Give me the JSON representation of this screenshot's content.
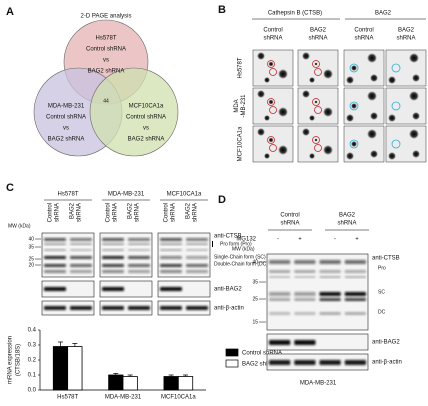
{
  "panel_a": {
    "label": "A",
    "title": "2-D PAGE analysis",
    "circles": [
      [
        "Hs578T",
        "Control shRNA",
        "vs",
        "BAG2 shRNA"
      ],
      [
        "MDA-MB-231",
        "Control shRNA",
        "vs",
        "BAG2 shRNA"
      ],
      [
        "MCF10CA1a",
        "Control shRNA",
        "vs",
        "BAG2 shRNA"
      ]
    ],
    "overlap": "44"
  },
  "panel_b": {
    "label": "B",
    "headers": [
      "Cathepsin B (CTSB)",
      "BAG2"
    ],
    "columns": [
      [
        "Control",
        "shRNA"
      ],
      [
        "BAG2",
        "shRNA"
      ],
      [
        "Control",
        "shRNA"
      ],
      [
        "BAG2",
        "shRNA"
      ]
    ],
    "rows": [
      [
        "Hs578T"
      ],
      [
        "MDA",
        "-MB-231"
      ],
      [
        "MCF10CA1a"
      ]
    ]
  },
  "panel_c": {
    "label": "C",
    "cell_lines": [
      "Hs578T",
      "MDA-MB-231",
      "MCF10CA1a"
    ],
    "lanes": [
      [
        "Control",
        "shRNA"
      ],
      [
        "BAG2",
        "shRNA"
      ]
    ],
    "mw_title": "MW (kDa)",
    "mw_ticks": [
      40,
      35,
      25,
      20
    ],
    "blot_labels": [
      "anti-CTSB",
      "Pro form (Pro)",
      "Single-Chain form (SC)",
      "Double-Chain form (DC)",
      "anti-BAG2",
      "anti-β-actin"
    ]
  },
  "chart_data": {
    "type": "bar",
    "ylabel": [
      "mRNA expression",
      "(CTSB/18S)"
    ],
    "categories": [
      "Hs578T",
      "MDA-MB-231",
      "MCF10CA1a"
    ],
    "series": [
      {
        "name": "Control shRNA",
        "color": "#000000",
        "values": [
          0.29,
          0.1,
          0.09
        ],
        "errors": [
          0.03,
          0.01,
          0.01
        ]
      },
      {
        "name": "BAG2 shRNA",
        "color": "#ffffff",
        "values": [
          0.29,
          0.09,
          0.09
        ],
        "errors": [
          0.02,
          0.01,
          0.01
        ]
      }
    ],
    "ylim": [
      0,
      0.4
    ],
    "yticks": [
      {
        "value": 0,
        "label": "0.0"
      },
      0.1,
      0.2,
      0.3,
      0.4
    ]
  },
  "panel_d": {
    "label": "D",
    "groups": [
      [
        "Control",
        "shRNA"
      ],
      [
        "BAG2",
        "shRNA"
      ]
    ],
    "treatment": "MG132",
    "treatment_states": [
      "-",
      "+",
      "-",
      "+"
    ],
    "mw_title": "MW (kDa)",
    "mw_ticks": [
      40,
      35,
      25,
      15
    ],
    "blot_labels": [
      "anti-CTSB",
      "Pro",
      "SC",
      "DC",
      "anti-BAG2",
      "anti-β-actin"
    ],
    "cell_line": "MDA-MB-231"
  }
}
